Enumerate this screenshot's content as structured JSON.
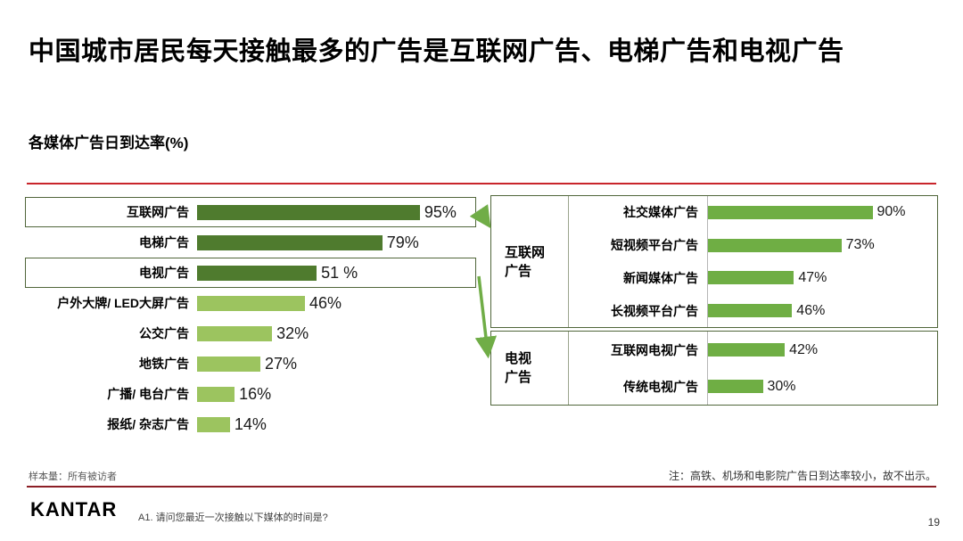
{
  "title": "中国城市居民每天接触最多的广告是互联网广告、电梯广告和电视广告",
  "subtitle": "各媒体广告日到达率(%)",
  "chart_data": [
    {
      "type": "bar",
      "orientation": "horizontal",
      "title": "各媒体广告日到达率(%)",
      "categories": [
        "互联网广告",
        "电梯广告",
        "电视广告",
        "户外大牌/ LED大屏广告",
        "公交广告",
        "地铁广告",
        "广播/ 电台广告",
        "报纸/ 杂志广告"
      ],
      "values": [
        95,
        79,
        51,
        46,
        32,
        27,
        16,
        14
      ],
      "labels": [
        "95%",
        "79%",
        "51 %",
        "46%",
        "32%",
        "27%",
        "16%",
        "14%"
      ],
      "highlighted_rows": [
        "互联网广告",
        "电视广告"
      ],
      "xlim": [
        0,
        100
      ],
      "legend": "none",
      "grid": "off"
    },
    {
      "type": "bar",
      "orientation": "horizontal",
      "group": "互联网广告",
      "group_lines": [
        "互联网",
        "广告"
      ],
      "categories": [
        "社交媒体广告",
        "短视频平台广告",
        "新闻媒体广告",
        "长视频平台广告"
      ],
      "values": [
        90,
        73,
        47,
        46
      ],
      "labels": [
        "90%",
        "73%",
        "47%",
        "46%"
      ],
      "xlim": [
        0,
        100
      ]
    },
    {
      "type": "bar",
      "orientation": "horizontal",
      "group": "电视广告",
      "group_lines": [
        "电视",
        "广告"
      ],
      "categories": [
        "互联网电视广告",
        "传统电视广告"
      ],
      "values": [
        42,
        30
      ],
      "labels": [
        "42%",
        "30%"
      ],
      "xlim": [
        0,
        100
      ]
    }
  ],
  "footnotes": {
    "sample": "样本量：所有被访者",
    "note": "注：高铁、机场和电影院广告日到达率较小，故不出示。"
  },
  "footer": {
    "logo": "KANTAR",
    "question": "A1. 请问您最近一次接触以下媒体的时间是?",
    "page": "19"
  },
  "colors": {
    "bar_dark_green": "#4f7b2e",
    "bar_light_green": "#9cc45f",
    "bar_medium_green": "#6fae44",
    "box_border": "#50663a",
    "top_rule_red": "#c9252b",
    "bottom_rule_red": "#8c1f26",
    "arrow_green": "#70ad47"
  }
}
